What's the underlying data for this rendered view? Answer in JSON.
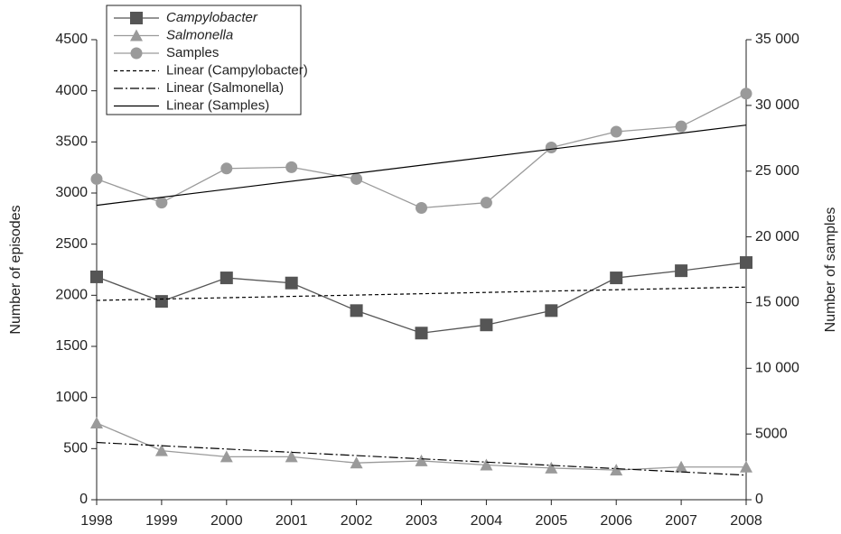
{
  "chart_data": {
    "type": "line",
    "x": [
      1998,
      1999,
      2000,
      2001,
      2002,
      2003,
      2004,
      2005,
      2006,
      2007,
      2008
    ],
    "xlim": [
      1998,
      2008
    ],
    "xticks": [
      1998,
      1999,
      2000,
      2001,
      2002,
      2003,
      2004,
      2005,
      2006,
      2007,
      2008
    ],
    "ylabel": "Number of episodes",
    "ylim": [
      0,
      4500
    ],
    "yticks": [
      0,
      500,
      1000,
      1500,
      2000,
      2500,
      3000,
      3500,
      4000,
      4500
    ],
    "y2label": "Number of samples",
    "y2lim": [
      0,
      35000
    ],
    "y2ticks": [
      0,
      5000,
      {
        "value": 10000,
        "label": "10 000"
      },
      {
        "value": 15000,
        "label": "15 000"
      },
      {
        "value": 20000,
        "label": "20 000"
      },
      {
        "value": 25000,
        "label": "25 000"
      },
      {
        "value": 30000,
        "label": "30 000"
      },
      {
        "value": 35000,
        "label": "35 000"
      }
    ],
    "legend": "top-left",
    "series": [
      {
        "name": "Campylobacter",
        "italic": true,
        "color": "#555555",
        "marker": "square",
        "values": [
          2180,
          1940,
          2170,
          2120,
          1850,
          1630,
          1710,
          1850,
          2170,
          2240,
          2320
        ]
      },
      {
        "name": "Salmonella",
        "italic": true,
        "color": "#9a9a9a",
        "marker": "triangle",
        "values": [
          750,
          480,
          420,
          420,
          360,
          380,
          340,
          310,
          290,
          320,
          320
        ]
      },
      {
        "name": "Samples",
        "color": "#9a9a9a",
        "marker": "circle",
        "axis": "y2",
        "values": [
          24400,
          22600,
          25200,
          25300,
          24400,
          22200,
          22600,
          26800,
          28000,
          28400,
          30900
        ]
      },
      {
        "name": "Linear (Campylobacter)",
        "color": "#000000",
        "dash": "4,3",
        "x": [
          1998,
          2008
        ],
        "values": [
          1950,
          2080
        ]
      },
      {
        "name": "Linear (Salmonella)",
        "color": "#000000",
        "dash": "10,3,2,3",
        "x": [
          1998,
          2008
        ],
        "values": [
          560,
          240
        ]
      },
      {
        "name": "Linear (Samples)",
        "color": "#000000",
        "axis": "y2",
        "x": [
          1998,
          2008
        ],
        "values": [
          22400,
          28500
        ]
      }
    ]
  }
}
